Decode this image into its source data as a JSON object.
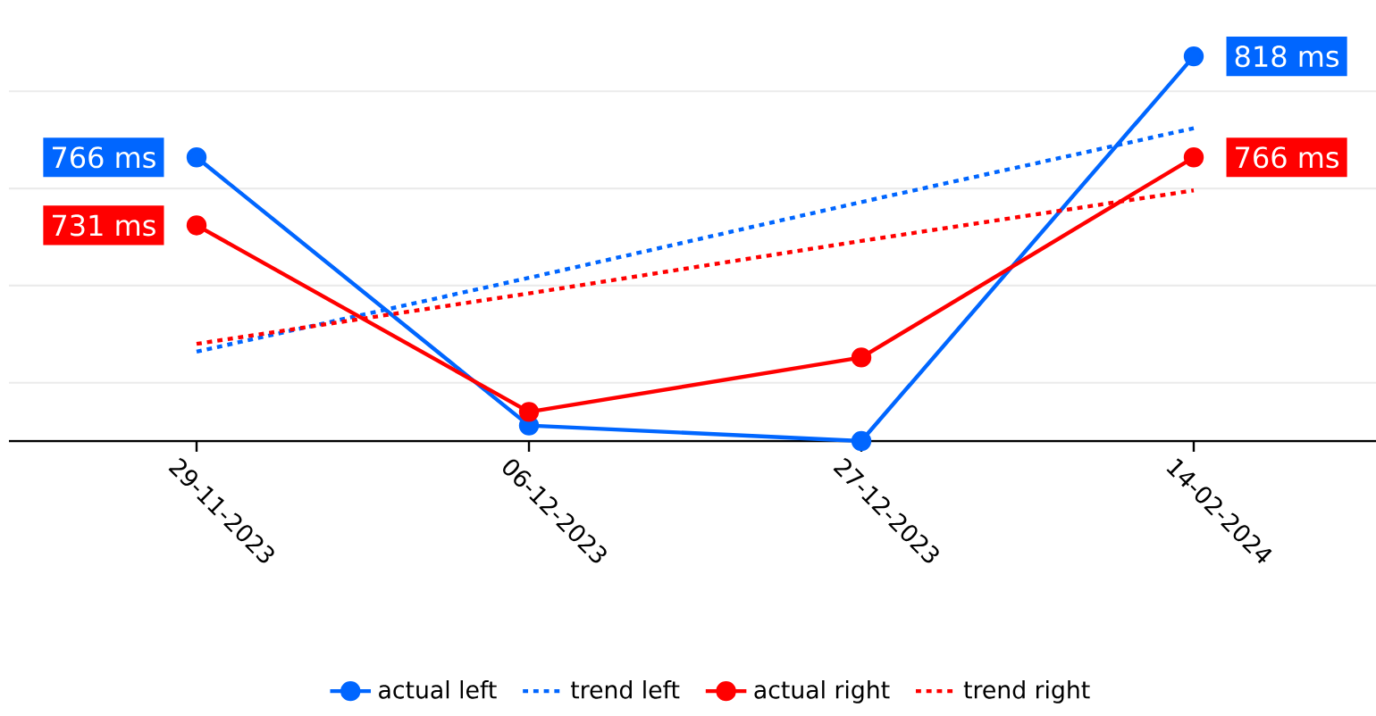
{
  "chart_data": {
    "type": "line",
    "categories": [
      "29-11-2023",
      "06-12-2023",
      "27-12-2023",
      "14-02-2024"
    ],
    "series": [
      {
        "name": "actual left",
        "color": "#0066ff",
        "values": [
          766,
          628,
          620,
          818
        ],
        "value_labels": [
          "766 ms",
          null,
          null,
          "818 ms"
        ],
        "marker": "circle",
        "line_style": "solid"
      },
      {
        "name": "trend left",
        "color": "#0066ff",
        "values": [
          666,
          704,
          743,
          781
        ],
        "marker": "none",
        "line_style": "dotted"
      },
      {
        "name": "actual right",
        "color": "#ff0000",
        "values": [
          731,
          635,
          663,
          766
        ],
        "value_labels": [
          "731 ms",
          null,
          null,
          "766 ms"
        ],
        "marker": "circle",
        "line_style": "solid"
      },
      {
        "name": "trend right",
        "color": "#ff0000",
        "values": [
          670,
          696,
          723,
          749
        ],
        "marker": "none",
        "line_style": "dotted"
      }
    ],
    "yticks": [
      {
        "value": 650,
        "label": null
      },
      {
        "value": 700,
        "label": null
      },
      {
        "value": 750,
        "label": null
      },
      {
        "value": 800,
        "label": null
      }
    ],
    "grid": "y",
    "legend": "bottom",
    "tick_labels": "x"
  }
}
